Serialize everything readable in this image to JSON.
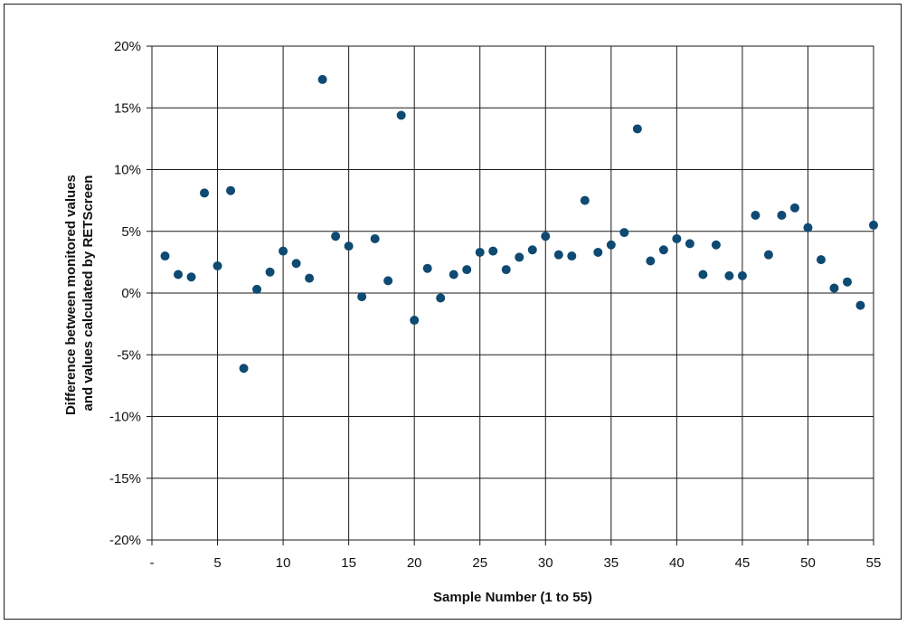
{
  "chart_data": {
    "type": "scatter",
    "title": "",
    "xlabel": "Sample Number (1 to 55)",
    "ylabel_lines": [
      "Difference between monitored values",
      "and values calculated by RETScreen"
    ],
    "xlim": [
      0,
      55
    ],
    "ylim": [
      -20,
      20
    ],
    "x_ticks": [
      0,
      5,
      10,
      15,
      20,
      25,
      30,
      35,
      40,
      45,
      50,
      55
    ],
    "x_tick_labels": [
      "-",
      "5",
      "10",
      "15",
      "20",
      "25",
      "30",
      "35",
      "40",
      "45",
      "50",
      "55"
    ],
    "y_ticks": [
      20,
      15,
      10,
      5,
      0,
      -5,
      -10,
      -15,
      -20
    ],
    "y_tick_labels": [
      "20%",
      "15%",
      "10%",
      "5%",
      "0%",
      "-5%",
      "-10%",
      "-15%",
      "-20%"
    ],
    "y_unit": "%",
    "grid": true,
    "marker_color": "#0e4a72",
    "x": [
      1,
      2,
      3,
      4,
      5,
      6,
      7,
      8,
      9,
      10,
      11,
      12,
      13,
      14,
      15,
      16,
      17,
      18,
      19,
      20,
      21,
      22,
      23,
      24,
      25,
      26,
      27,
      28,
      29,
      30,
      31,
      32,
      33,
      34,
      35,
      36,
      37,
      38,
      39,
      40,
      41,
      42,
      43,
      44,
      45,
      46,
      47,
      48,
      49,
      50,
      51,
      52,
      53,
      54,
      55
    ],
    "y": [
      3.0,
      1.5,
      1.3,
      8.1,
      2.2,
      8.3,
      -6.1,
      0.3,
      1.7,
      3.4,
      2.4,
      1.2,
      17.3,
      4.6,
      3.8,
      -0.3,
      4.4,
      1.0,
      14.4,
      -2.2,
      2.0,
      -0.4,
      1.5,
      1.9,
      3.3,
      3.4,
      1.9,
      2.9,
      3.5,
      4.6,
      3.1,
      3.0,
      7.5,
      3.3,
      3.9,
      4.9,
      13.3,
      2.6,
      3.5,
      4.4,
      4.0,
      1.5,
      3.9,
      1.4,
      1.4,
      6.3,
      3.1,
      6.3,
      6.9,
      5.3,
      2.7,
      0.4,
      0.9,
      -1.0,
      5.5
    ]
  }
}
